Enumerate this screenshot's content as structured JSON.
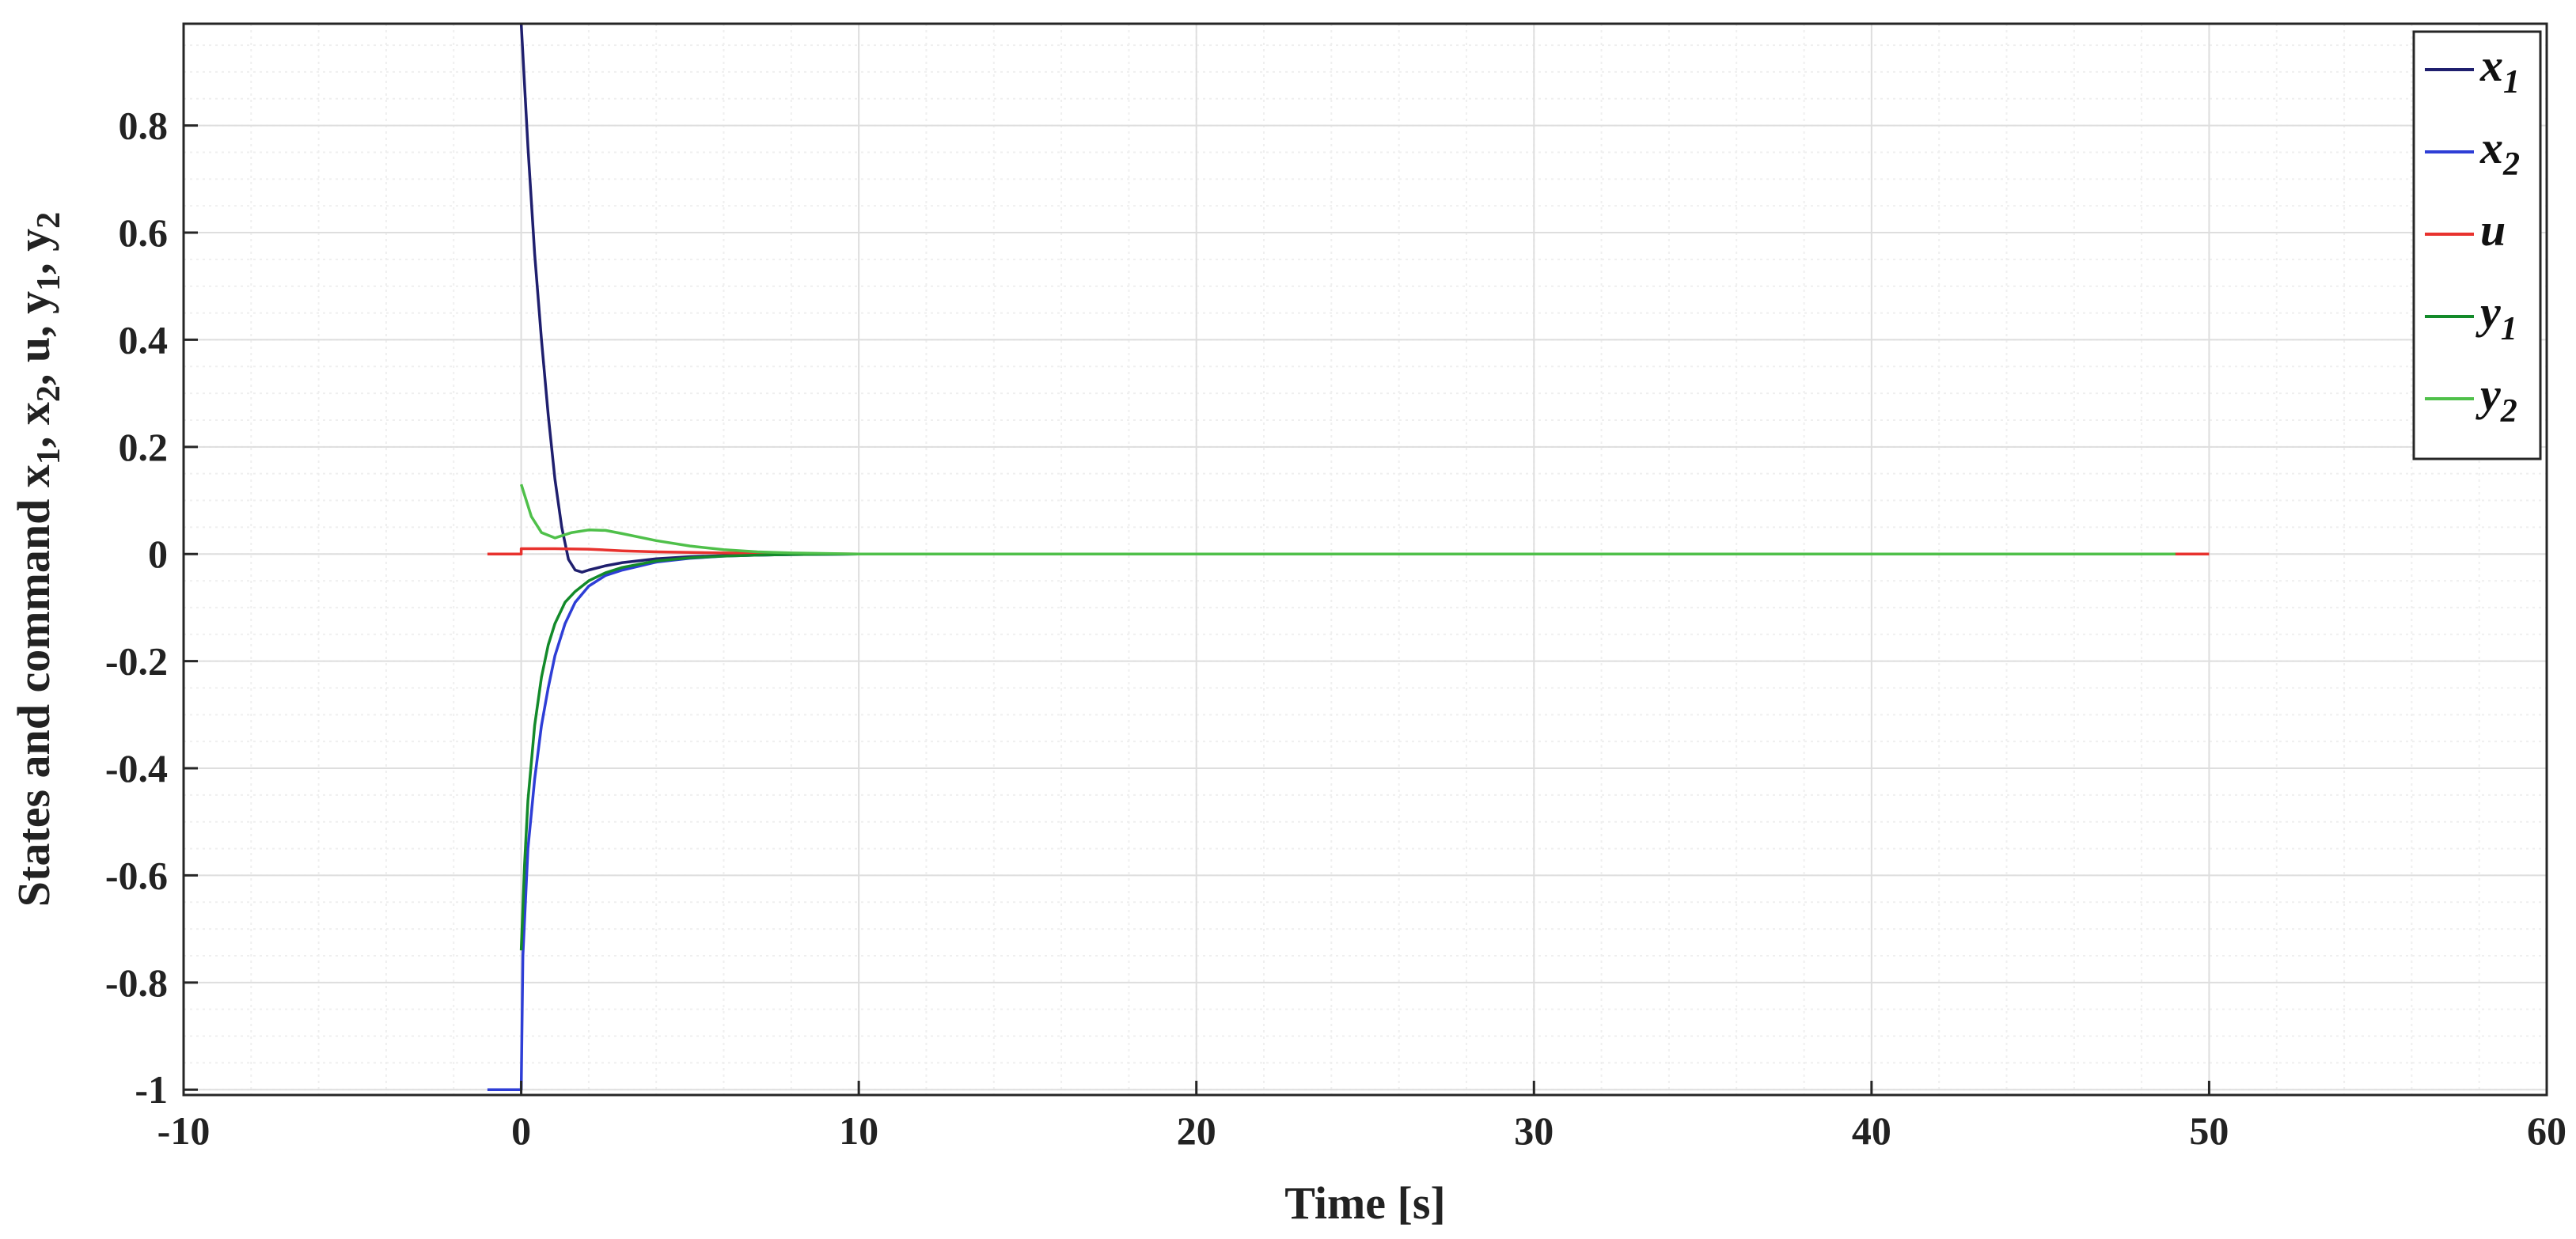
{
  "chart_data": {
    "type": "line",
    "xlabel": "Time [s]",
    "ylabel": {
      "parts": [
        {
          "text": "States and command x",
          "sub": false
        },
        {
          "text": "1",
          "sub": true
        },
        {
          "text": ", x",
          "sub": false
        },
        {
          "text": "2",
          "sub": true
        },
        {
          "text": ", u, y",
          "sub": false
        },
        {
          "text": "1",
          "sub": true
        },
        {
          "text": ", y",
          "sub": false
        },
        {
          "text": "2",
          "sub": true
        }
      ]
    },
    "xlim": [
      -10,
      60
    ],
    "ylim": [
      -1.01,
      0.99
    ],
    "xticks": [
      "-10",
      "0",
      "10",
      "20",
      "30",
      "40",
      "50",
      "60"
    ],
    "xtick_values": [
      -10,
      0,
      10,
      20,
      30,
      40,
      50,
      60
    ],
    "yticks": [
      "-1",
      "-0.8",
      "-0.6",
      "-0.4",
      "-0.2",
      "0",
      "0.2",
      "0.4",
      "0.6",
      "0.8"
    ],
    "ytick_values": [
      -1,
      -0.8,
      -0.6,
      -0.4,
      -0.2,
      0,
      0.2,
      0.4,
      0.6,
      0.8
    ],
    "grid": true,
    "minor_grid": true,
    "legend_position": "top-right",
    "series": [
      {
        "name": "x",
        "name_sub": "1",
        "color": "#1f1f6e",
        "x": [
          0,
          0.2,
          0.4,
          0.6,
          0.8,
          1.0,
          1.2,
          1.4,
          1.6,
          1.8,
          2.0,
          2.5,
          3,
          4,
          5,
          6,
          7,
          8,
          10,
          15,
          20,
          30,
          40,
          49
        ],
        "y": [
          0.99,
          0.76,
          0.56,
          0.4,
          0.26,
          0.14,
          0.05,
          -0.01,
          -0.03,
          -0.034,
          -0.03,
          -0.022,
          -0.016,
          -0.009,
          -0.005,
          -0.003,
          -0.002,
          -0.001,
          0,
          0,
          0,
          0,
          0,
          0
        ]
      },
      {
        "name": "x",
        "name_sub": "2",
        "color": "#2e3ed6",
        "x": [
          -1,
          0,
          0.05,
          0.2,
          0.4,
          0.6,
          0.8,
          1.0,
          1.3,
          1.6,
          2.0,
          2.5,
          3,
          4,
          5,
          6,
          7,
          8,
          10,
          15,
          20,
          30,
          40,
          49
        ],
        "y": [
          -1.0,
          -1.0,
          -0.75,
          -0.55,
          -0.42,
          -0.32,
          -0.25,
          -0.19,
          -0.13,
          -0.09,
          -0.06,
          -0.04,
          -0.03,
          -0.015,
          -0.008,
          -0.004,
          -0.002,
          -0.001,
          0,
          0,
          0,
          0,
          0,
          0
        ]
      },
      {
        "name": "u",
        "name_sub": "",
        "color": "#e8322e",
        "x": [
          -1,
          0,
          0,
          1,
          2,
          3,
          4,
          6,
          8,
          10,
          15,
          20,
          30,
          40,
          49,
          50
        ],
        "y": [
          0,
          0,
          0.01,
          0.01,
          0.009,
          0.006,
          0.004,
          0.002,
          0.001,
          0,
          0,
          0,
          0,
          0,
          0,
          0
        ]
      },
      {
        "name": "y",
        "name_sub": "1",
        "color": "#138a2a",
        "x": [
          0,
          0.1,
          0.2,
          0.4,
          0.6,
          0.8,
          1.0,
          1.3,
          1.6,
          2.0,
          2.5,
          3,
          4,
          5,
          6,
          7,
          8,
          10,
          15,
          20,
          30,
          40,
          49
        ],
        "y": [
          -0.74,
          -0.58,
          -0.46,
          -0.32,
          -0.23,
          -0.17,
          -0.13,
          -0.09,
          -0.07,
          -0.05,
          -0.035,
          -0.025,
          -0.013,
          -0.007,
          -0.004,
          -0.002,
          -0.001,
          0,
          0,
          0,
          0,
          0,
          0
        ]
      },
      {
        "name": "y",
        "name_sub": "2",
        "color": "#4fc04a",
        "x": [
          0,
          0.3,
          0.6,
          1.0,
          1.5,
          2.0,
          2.5,
          3,
          4,
          5,
          6,
          7,
          8,
          10,
          15,
          20,
          30,
          40,
          49
        ],
        "y": [
          0.13,
          0.07,
          0.04,
          0.03,
          0.04,
          0.045,
          0.044,
          0.038,
          0.025,
          0.015,
          0.008,
          0.004,
          0.002,
          0,
          0,
          0,
          0,
          0,
          0
        ]
      }
    ]
  }
}
